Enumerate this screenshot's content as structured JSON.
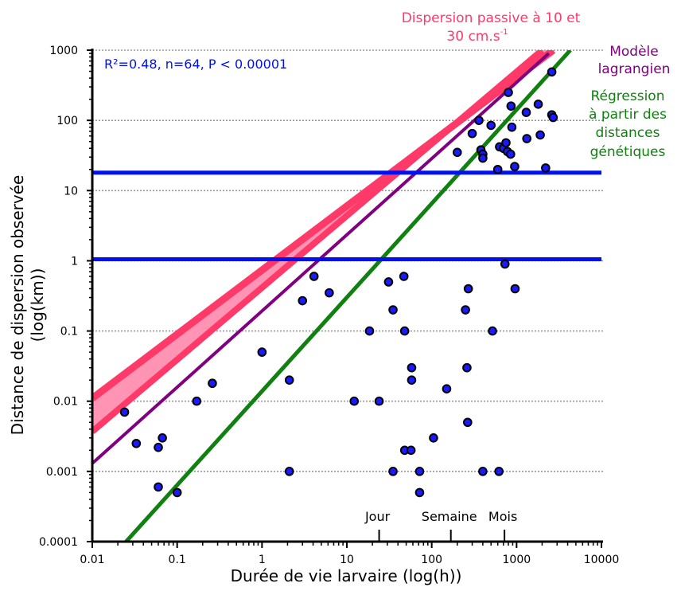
{
  "chart_data": {
    "type": "scatter",
    "xlabel": "Durée de vie larvaire (log(h))",
    "ylabel_line1": "Distance de dispersion observée",
    "ylabel_line2": "(log(km))",
    "x_scale": "log",
    "y_scale": "log",
    "xlim": [
      0.01,
      10000
    ],
    "ylim": [
      0.0001,
      1000
    ],
    "x_ticks": [
      "0.01",
      "0.1",
      "1",
      "10",
      "100",
      "1000",
      "10000"
    ],
    "y_ticks": [
      "0.0001",
      "0.001",
      "0.01",
      "0.1",
      "1",
      "10",
      "100",
      "1000"
    ],
    "grid": "horizontal dotted",
    "stats_text": "R²=0.48, n=64, P < 0.00001",
    "points": [
      [
        0.024,
        0.007
      ],
      [
        0.033,
        0.0025
      ],
      [
        0.06,
        0.0022
      ],
      [
        0.067,
        0.003
      ],
      [
        0.06,
        0.0006
      ],
      [
        0.1,
        0.0005
      ],
      [
        0.17,
        0.01
      ],
      [
        0.26,
        0.018
      ],
      [
        1.0,
        0.05
      ],
      [
        2.1,
        0.02
      ],
      [
        2.1,
        0.001
      ],
      [
        3.0,
        0.27
      ],
      [
        4.1,
        0.6
      ],
      [
        6.2,
        0.35
      ],
      [
        12.2,
        0.01
      ],
      [
        18.5,
        0.1
      ],
      [
        24.0,
        0.01
      ],
      [
        31.0,
        0.5
      ],
      [
        35.0,
        0.2
      ],
      [
        35.0,
        0.001
      ],
      [
        47.0,
        0.6
      ],
      [
        48.0,
        0.1
      ],
      [
        48.0,
        0.002
      ],
      [
        57.0,
        0.002
      ],
      [
        58.0,
        0.03
      ],
      [
        58.0,
        0.02
      ],
      [
        72.0,
        0.001
      ],
      [
        72.0,
        0.0005
      ],
      [
        105.0,
        0.003
      ],
      [
        150.0,
        0.015
      ],
      [
        200.0,
        35.0
      ],
      [
        250.0,
        0.2
      ],
      [
        260.0,
        0.03
      ],
      [
        265.0,
        0.005
      ],
      [
        270.0,
        0.4
      ],
      [
        300.0,
        65.0
      ],
      [
        360.0,
        100.0
      ],
      [
        380.0,
        38.0
      ],
      [
        400.0,
        33.0
      ],
      [
        400.0,
        29.0
      ],
      [
        400.0,
        0.001
      ],
      [
        500.0,
        85.0
      ],
      [
        520.0,
        0.1
      ],
      [
        600.0,
        20.0
      ],
      [
        620.0,
        0.001
      ],
      [
        630.0,
        42.0
      ],
      [
        700.0,
        40.0
      ],
      [
        730.0,
        0.9
      ],
      [
        750.0,
        48.0
      ],
      [
        780.0,
        36.0
      ],
      [
        800.0,
        250.0
      ],
      [
        850.0,
        33.0
      ],
      [
        860.0,
        160.0
      ],
      [
        880.0,
        80.0
      ],
      [
        950.0,
        22.0
      ],
      [
        960.0,
        0.4
      ],
      [
        1300.0,
        130.0
      ],
      [
        1320.0,
        55.0
      ],
      [
        1800.0,
        170.0
      ],
      [
        1900.0,
        62.0
      ],
      [
        2200.0,
        21.0
      ],
      [
        2600.0,
        120.0
      ],
      [
        2600.0,
        490.0
      ],
      [
        2700.0,
        110.0
      ]
    ],
    "lines": [
      {
        "name": "Dispersion passive à 10 et 30 cm.s-1 (upper)",
        "color": "#ff3a68",
        "x": [
          0.01,
          2700
        ],
        "y": [
          0.011,
          1000
        ]
      },
      {
        "name": "Dispersion passive à 10 et 30 cm.s-1 (lower)",
        "color": "#ff3a68",
        "x": [
          0.01,
          2000
        ],
        "y": [
          0.0037,
          1000
        ]
      },
      {
        "name": "Modèle lagrangien",
        "color": "#800080",
        "x": [
          0.01,
          2400
        ],
        "y": [
          0.0013,
          900
        ]
      },
      {
        "name": "Régression à partir des distances génétiques",
        "color": "#108010",
        "x": [
          0.025,
          4300
        ],
        "y": [
          0.0001,
          1000
        ]
      }
    ],
    "hlines": [
      {
        "y": 18.0,
        "color": "#0010f0"
      },
      {
        "y": 1.05,
        "color": "#0010f0"
      }
    ],
    "annotations": {
      "passive_line1": "Dispersion passive à 10 et",
      "passive_line2_main": "30 cm.s",
      "passive_line2_sup": "-1",
      "lagrangian_line1": "Modèle",
      "lagrangian_line2": "lagrangien",
      "regression_line1": "Régression",
      "regression_line2": "à partir des",
      "regression_line3": "distances",
      "regression_line4": "génétiques"
    },
    "time_markers": [
      {
        "label": "Jour",
        "x": 24
      },
      {
        "label": "Semaine",
        "x": 168
      },
      {
        "label": "Mois",
        "x": 720
      }
    ],
    "colors": {
      "passive": "#ff3a68",
      "passive_fill": "#ff94b4",
      "lagrangian": "#800080",
      "regression": "#108010",
      "stats": "#0010f0",
      "point_fill": "#1a1aff",
      "point_stroke": "#000000"
    }
  }
}
